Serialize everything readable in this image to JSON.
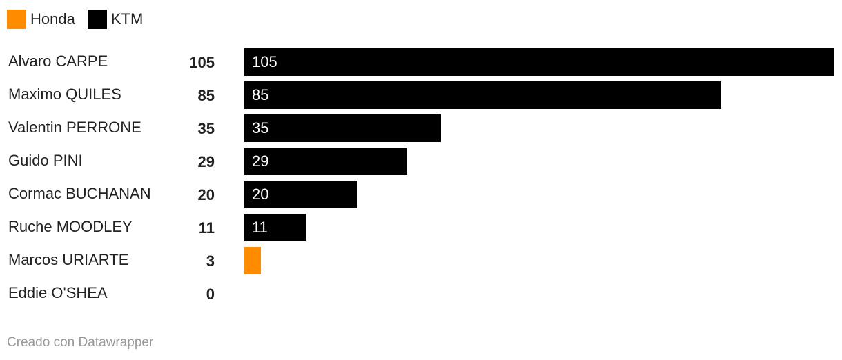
{
  "chart_data": {
    "type": "bar",
    "orientation": "horizontal",
    "legend": {
      "placement": "top-left",
      "entries": [
        {
          "name": "Honda",
          "color": "#ff8c00"
        },
        {
          "name": "KTM",
          "color": "#000000"
        }
      ]
    },
    "categories": [
      "Alvaro CARPE",
      "Maximo QUILES",
      "Valentin PERRONE",
      "Guido PINI",
      "Cormac BUCHANAN",
      "Ruche MOODLEY",
      "Marcos URIARTE",
      "Eddie O'SHEA"
    ],
    "values": [
      105,
      85,
      35,
      29,
      20,
      11,
      3,
      0
    ],
    "teams": [
      "KTM",
      "KTM",
      "KTM",
      "KTM",
      "KTM",
      "KTM",
      "Honda",
      null
    ],
    "xlim": [
      0,
      105
    ],
    "grid": false
  },
  "footer": "Creado con Datawrapper"
}
